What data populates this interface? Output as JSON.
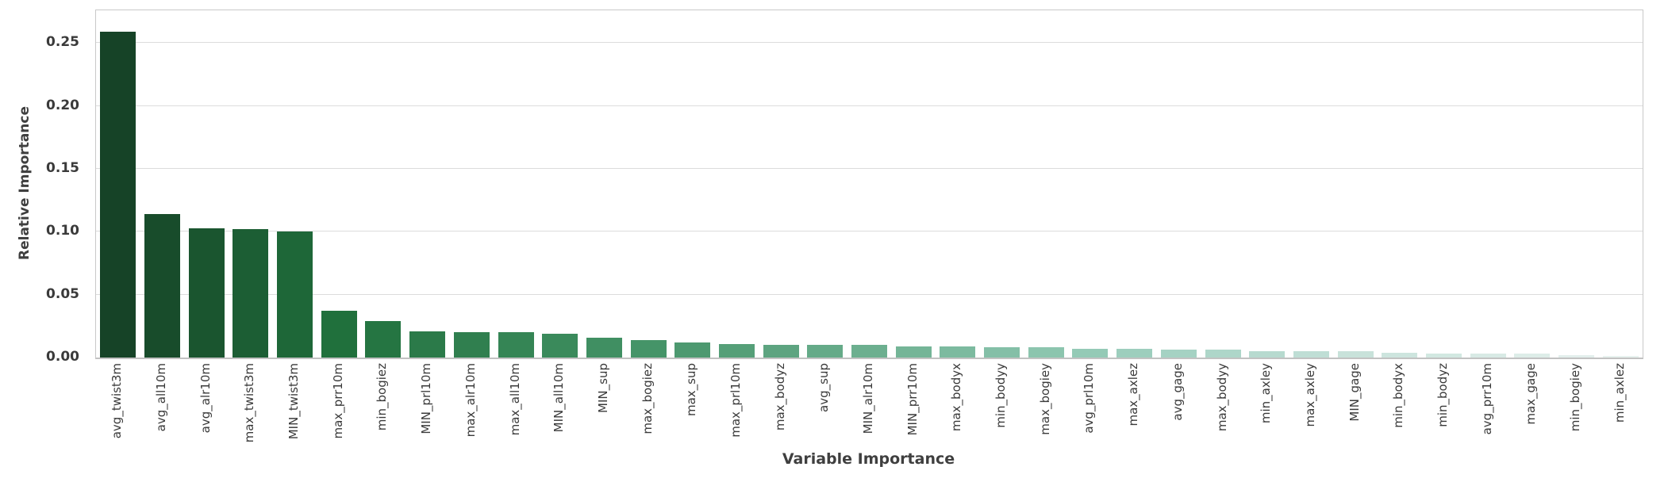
{
  "chart_data": {
    "type": "bar",
    "title": "",
    "xlabel": "Variable Importance",
    "ylabel": "Relative Importance",
    "categories": [
      "avg_twist3m",
      "avg_all10m",
      "avg_alr10m",
      "max_twist3m",
      "MIN_twist3m",
      "max_prr10m",
      "min_bogiez",
      "MIN_prl10m",
      "max_alr10m",
      "max_all10m",
      "MIN_all10m",
      "MIN_sup",
      "max_bogiez",
      "max_sup",
      "max_prl10m",
      "max_bodyz",
      "avg_sup",
      "MIN_alr10m",
      "MIN_prr10m",
      "max_bodyx",
      "min_bodyy",
      "max_bogiey",
      "avg_prl10m",
      "max_axlez",
      "avg_gage",
      "max_bodyy",
      "min_axley",
      "max_axley",
      "MIN_gage",
      "min_bodyx",
      "min_bodyz",
      "avg_prr10m",
      "max_gage",
      "min_bogiey",
      "min_axlez"
    ],
    "values": [
      0.259,
      0.114,
      0.103,
      0.102,
      0.1,
      0.037,
      0.029,
      0.021,
      0.02,
      0.02,
      0.019,
      0.016,
      0.014,
      0.012,
      0.011,
      0.01,
      0.01,
      0.01,
      0.009,
      0.009,
      0.008,
      0.008,
      0.007,
      0.007,
      0.006,
      0.006,
      0.005,
      0.005,
      0.005,
      0.004,
      0.003,
      0.003,
      0.003,
      0.002,
      0.001
    ],
    "palette": [
      "#164327",
      "#184c2b",
      "#1a552f",
      "#1c5e34",
      "#1e6738",
      "#20703c",
      "#257542",
      "#2b7a49",
      "#307f4f",
      "#358555",
      "#3a8a5b",
      "#408f62",
      "#459468",
      "#4d9970",
      "#559f78",
      "#5da480",
      "#65aa88",
      "#6caf8f",
      "#74b597",
      "#7cba9f",
      "#84bfa7",
      "#8cc5ae",
      "#94cab6",
      "#9dcebd",
      "#a5d2c3",
      "#aed6c9",
      "#b7dacf",
      "#bfded5",
      "#c8e2da",
      "#cde5de",
      "#d2e8e1",
      "#d8eae5",
      "#ddede8",
      "#e3efec",
      "#e8f2ef"
    ],
    "y_ticks": [
      0,
      0.05,
      0.1,
      0.15,
      0.2,
      0.25
    ],
    "y_tick_labels": [
      "0.00",
      "0.05",
      "0.10",
      "0.15",
      "0.20",
      "0.25"
    ],
    "ylim": [
      0,
      0.276
    ],
    "grid": "horizontal",
    "legend": "none",
    "colors": {
      "background": "#ffffff",
      "gridline": "#dcdcdc",
      "spine": "#c9c9c9",
      "baseline": "#c2c2c2",
      "tick_label": "#3a3a3a",
      "axis_label": "#3f3f3f",
      "bar_darkest": "#164327",
      "bar_lightest": "#e8f2ef"
    }
  }
}
